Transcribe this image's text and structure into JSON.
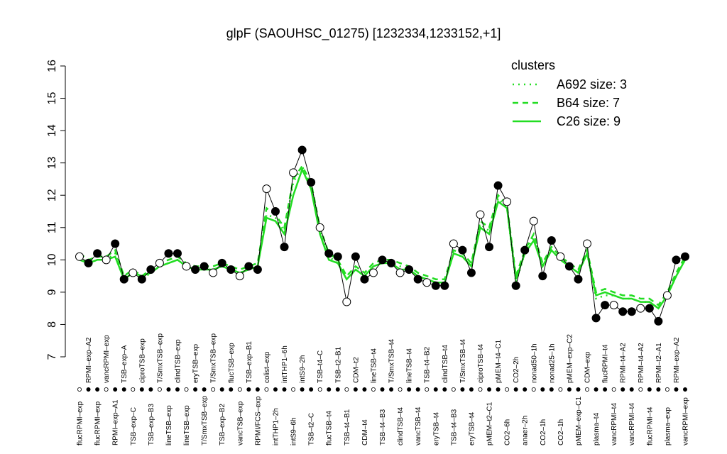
{
  "chart_data": {
    "type": "line",
    "title": "glpF (SAOUHSC_01275) [1232334,1233152,+1]",
    "categories": [
      "flucRPMI–exp",
      "RPMI–exp–A2",
      "flucRPMI–exp",
      "vancRPMI–exp",
      "RPMI–exp–A1",
      "TSB–exp–A",
      "TSB–exp–C",
      "ciproTSB–exp",
      "TSB–exp–B3",
      "T/SmxTSB–exp",
      "lineTSB–exp",
      "clindTSB–exp",
      "lineTSB–exp",
      "eryTSB–exp",
      "T/SmxTSB–exp",
      "T/SmxTSB–exp",
      "TSB–exp–B2",
      "flucTSB–exp",
      "vancTSB–exp",
      "TSB–exp–B1",
      "RPMI/FCS–exp",
      "colist–exp",
      "intTHP1–2h",
      "intTHP1–6h",
      "intS9–6h",
      "intS9–2h",
      "TSB–t2–C",
      "TSB–t4–C",
      "flucTSB–t4",
      "TSB–t2–B1",
      "TSB–t4–B1",
      "CDM–t2",
      "CDM–t4",
      "lineTSB–t4",
      "TSB–t4–B3",
      "T/SmxTSB–t4",
      "clindTSB–t4",
      "lineTSB–t4",
      "vancTSB–t4",
      "TSB–t4–B2",
      "eryTSB–t4",
      "clindTSB–t4",
      "TSB–t4–B3",
      "T/SmxTSB–t4",
      "eryTSB–t4",
      "ciproTSB–t4",
      "pMEM–t2–C1",
      "pMEM–t4–C1",
      "CO2–6h",
      "CO2–2h",
      "anaer–2h",
      "nonad50–1h",
      "CO2–1h",
      "nonad25–1h",
      "CO2–1h",
      "pMEM–exp–C2",
      "pMEM–exp–C1",
      "CDM–exp",
      "plasma–t4",
      "flucRPMI–t4",
      "vancRPMI–t4",
      "RPMI–t4–A2",
      "vancRPMI–t4",
      "RPMI–t4–A2",
      "flucRPMI–t4",
      "RPMI–t2–A1",
      "plasma–exp",
      "RPMI–exp–A2",
      "vancRPMI–exp"
    ],
    "values": [
      10.1,
      9.9,
      10.2,
      10.0,
      10.5,
      9.4,
      9.6,
      9.4,
      9.7,
      9.9,
      10.2,
      10.2,
      9.8,
      9.7,
      9.8,
      9.6,
      9.9,
      9.7,
      9.5,
      9.8,
      9.7,
      12.2,
      11.5,
      10.4,
      12.7,
      13.4,
      12.4,
      11.0,
      10.2,
      10.1,
      8.7,
      10.1,
      9.4,
      9.6,
      10.0,
      9.9,
      9.6,
      9.7,
      9.4,
      9.3,
      9.2,
      9.2,
      10.5,
      10.3,
      9.6,
      11.4,
      10.4,
      12.3,
      11.8,
      9.2,
      10.3,
      11.2,
      9.5,
      10.6,
      10.1,
      9.8,
      9.4,
      10.5,
      8.2,
      8.6,
      8.6,
      8.4,
      8.4,
      8.5,
      8.5,
      8.1,
      8.9,
      10.0,
      10.1
    ],
    "color": "#000000",
    "legend_title": "clusters",
    "series": [
      {
        "name": "A692 size: 3",
        "color": "#22dd22",
        "dash": "dotted",
        "values": [
          10.1,
          9.9,
          10.0,
          10.0,
          10.2,
          9.4,
          9.6,
          9.4,
          9.6,
          9.8,
          9.9,
          10.0,
          9.8,
          9.7,
          9.7,
          9.7,
          9.8,
          9.7,
          9.6,
          9.7,
          9.8,
          11.4,
          11.3,
          10.9,
          12.4,
          12.9,
          12.3,
          10.9,
          10.1,
          9.9,
          9.4,
          9.7,
          9.5,
          9.8,
          9.9,
          9.9,
          9.8,
          9.7,
          9.5,
          9.4,
          9.3,
          9.3,
          10.2,
          10.1,
          9.8,
          11.1,
          10.9,
          11.9,
          11.6,
          9.3,
          10.2,
          10.7,
          9.8,
          10.3,
          10.0,
          9.8,
          9.6,
          10.2,
          8.8,
          8.9,
          8.9,
          8.8,
          8.8,
          8.7,
          8.7,
          8.5,
          8.9,
          9.5,
          10.0
        ]
      },
      {
        "name": "B64 size: 7",
        "color": "#22dd22",
        "dash": "dashed",
        "values": [
          10.2,
          10.0,
          10.1,
          10.1,
          10.3,
          9.5,
          9.7,
          9.5,
          9.7,
          9.9,
          10.0,
          10.1,
          9.9,
          9.8,
          9.8,
          9.8,
          9.9,
          9.8,
          9.7,
          9.8,
          9.9,
          11.6,
          11.4,
          11.0,
          12.5,
          12.9,
          12.4,
          11.0,
          10.2,
          10.0,
          9.5,
          9.8,
          9.6,
          9.9,
          10.0,
          10.0,
          9.9,
          9.8,
          9.6,
          9.5,
          9.4,
          9.4,
          10.3,
          10.2,
          9.9,
          11.2,
          11.0,
          12.0,
          11.7,
          9.5,
          10.3,
          10.8,
          9.9,
          10.4,
          10.1,
          9.9,
          9.7,
          10.3,
          9.0,
          9.1,
          9.0,
          8.9,
          8.9,
          8.8,
          8.8,
          8.6,
          9.0,
          9.6,
          10.1
        ]
      },
      {
        "name": "C26 size: 9",
        "color": "#22dd22",
        "dash": "solid",
        "values": [
          10.0,
          9.9,
          10.0,
          10.0,
          10.1,
          9.4,
          9.6,
          9.5,
          9.6,
          9.8,
          9.9,
          10.0,
          9.8,
          9.7,
          9.7,
          9.7,
          9.8,
          9.7,
          9.6,
          9.7,
          9.8,
          11.3,
          11.2,
          10.8,
          12.0,
          12.8,
          12.2,
          10.8,
          10.0,
          9.9,
          9.4,
          9.7,
          9.5,
          9.8,
          9.9,
          9.9,
          9.7,
          9.7,
          9.5,
          9.4,
          9.3,
          9.3,
          10.2,
          10.1,
          9.8,
          11.0,
          10.8,
          11.8,
          11.6,
          9.4,
          10.2,
          10.6,
          9.8,
          10.3,
          10.0,
          9.8,
          9.6,
          10.2,
          8.9,
          9.0,
          8.9,
          8.8,
          8.8,
          8.7,
          8.7,
          8.5,
          8.9,
          9.5,
          10.0
        ]
      }
    ],
    "ylim": [
      7,
      16
    ],
    "yticks": [
      7,
      8,
      9,
      10,
      11,
      12,
      13,
      14,
      15,
      16
    ],
    "legend_position": "top-right"
  }
}
